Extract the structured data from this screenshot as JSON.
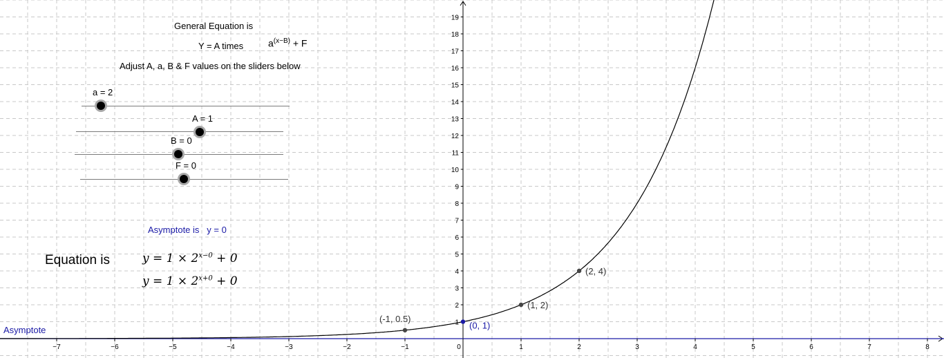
{
  "header": {
    "title": "General Equation is",
    "equation_prefix": "Y = A times",
    "equation_base": "a",
    "equation_exponent": "(x−B)",
    "equation_suffix": "+ F",
    "instructions": "Adjust  A, a, B & F values on the sliders below"
  },
  "sliders": [
    {
      "name": "a",
      "label": "a = 2",
      "value": 2
    },
    {
      "name": "A",
      "label": "A = 1",
      "value": 1
    },
    {
      "name": "B",
      "label": "B = 0",
      "value": 0
    },
    {
      "name": "F",
      "label": "F = 0",
      "value": 0
    }
  ],
  "asymptote_info": {
    "label": "Asymptote is",
    "value": "y = 0"
  },
  "equation_panel": {
    "label": "Equation is",
    "line1": {
      "lead": "y = 1 × 2",
      "exp": "x−0",
      "tail": " + 0"
    },
    "line2": {
      "lead": "y = 1 × 2",
      "exp": "x+0",
      "tail": " + 0"
    }
  },
  "asymptote_line_label": "Asymptote",
  "colors": {
    "asymptote": "#1a1aa6",
    "curve": "#000000",
    "grid": "#c8c8c8",
    "point": "#444444",
    "accent_point": "#1a1aa6"
  },
  "chart_data": {
    "type": "line",
    "function": "y = A * a^(x - B) + F",
    "params": {
      "A": 1,
      "a": 2,
      "B": 0,
      "F": 0
    },
    "xlim": [
      -8,
      8.3
    ],
    "ylim": [
      -1,
      20
    ],
    "x_ticks": [
      -7,
      -6,
      -5,
      -4,
      -3,
      -2,
      -1,
      0,
      1,
      2,
      3,
      4,
      5,
      6,
      7,
      8
    ],
    "y_ticks": [
      1,
      2,
      3,
      4,
      5,
      6,
      7,
      8,
      9,
      10,
      11,
      12,
      13,
      14,
      15,
      16,
      17,
      18,
      19
    ],
    "grid": true,
    "asymptote_y": 0,
    "points": [
      {
        "x": -1,
        "y": 0.5,
        "label": "(-1, 0.5)",
        "highlight": false
      },
      {
        "x": 0,
        "y": 1,
        "label": "(0, 1)",
        "highlight": true
      },
      {
        "x": 1,
        "y": 2,
        "label": "(1, 2)",
        "highlight": false
      },
      {
        "x": 2,
        "y": 4,
        "label": "(2, 4)",
        "highlight": false
      }
    ]
  }
}
